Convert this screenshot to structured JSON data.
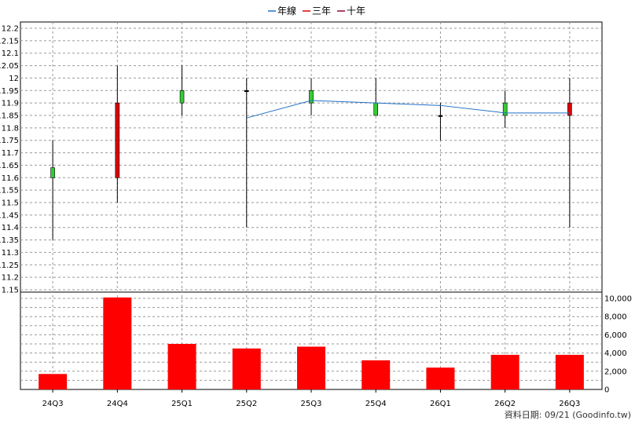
{
  "chart_data": {
    "type": "candlestick+bar",
    "legend": {
      "placement": "top-center",
      "items": [
        {
          "name": "年線",
          "color": "#1f6fc5"
        },
        {
          "name": "三年",
          "color": "#e00000"
        },
        {
          "name": "十年",
          "color": "#990033"
        }
      ]
    },
    "categories": [
      "24Q3",
      "24Q4",
      "25Q1",
      "25Q2",
      "25Q3",
      "25Q4",
      "26Q1",
      "26Q2",
      "26Q3"
    ],
    "price": {
      "ylim": [
        1.15,
        12.2
      ],
      "yticks": [
        1.15,
        11.2,
        11.25,
        11.3,
        11.35,
        11.4,
        11.45,
        11.5,
        11.55,
        11.6,
        11.65,
        11.7,
        11.75,
        11.8,
        11.85,
        11.9,
        11.95,
        12,
        12.05,
        12.1,
        12.15,
        12.2
      ],
      "ytick_labels": [
        "1.15",
        "11.2",
        "11.25",
        "11.3",
        "11.35",
        "11.4",
        "11.45",
        "11.5",
        "11.55",
        "11.6",
        "11.65",
        "11.7",
        "11.75",
        "11.8",
        "11.85",
        "11.9",
        "11.95",
        "12",
        "12.05",
        "12.1",
        "12.15",
        "12.2"
      ],
      "candles": [
        {
          "open": 11.6,
          "close": 11.64,
          "high": 11.75,
          "low": 11.35
        },
        {
          "open": 11.9,
          "close": 11.6,
          "high": 12.05,
          "low": 11.5
        },
        {
          "open": 11.9,
          "close": 11.95,
          "high": 12.05,
          "low": 11.85
        },
        {
          "open": 11.95,
          "close": 11.95,
          "high": 12,
          "low": 11.4
        },
        {
          "open": 11.9,
          "close": 11.95,
          "high": 12,
          "low": 11.85
        },
        {
          "open": 11.85,
          "close": 11.9,
          "high": 12,
          "low": 11.85
        },
        {
          "open": 11.85,
          "close": 11.85,
          "high": 11.9,
          "low": 11.75
        },
        {
          "open": 11.85,
          "close": 11.9,
          "high": 11.95,
          "low": 11.8
        },
        {
          "open": 11.9,
          "close": 11.85,
          "high": 12,
          "low": 11.4
        }
      ],
      "up_color": "#33cc33",
      "down_color": "#dd0000",
      "series": [
        {
          "name": "年線",
          "color": "#1f6fc5",
          "values": [
            null,
            null,
            null,
            11.84,
            11.91,
            11.9,
            11.89,
            11.86,
            11.86
          ]
        }
      ]
    },
    "volume": {
      "ylim": [
        0,
        10000
      ],
      "yticks": [
        0,
        2000,
        4000,
        6000,
        8000,
        10000
      ],
      "ytick_labels": [
        "0",
        "2,000",
        "4,000",
        "6,000",
        "8,000",
        "10,000"
      ],
      "values": [
        1700,
        10100,
        5000,
        4500,
        4700,
        3200,
        2400,
        3800,
        3800
      ],
      "bar_color": "#ff0000"
    },
    "grid": true,
    "footer": "資料日期: 09/21  (Goodinfo.tw)"
  }
}
